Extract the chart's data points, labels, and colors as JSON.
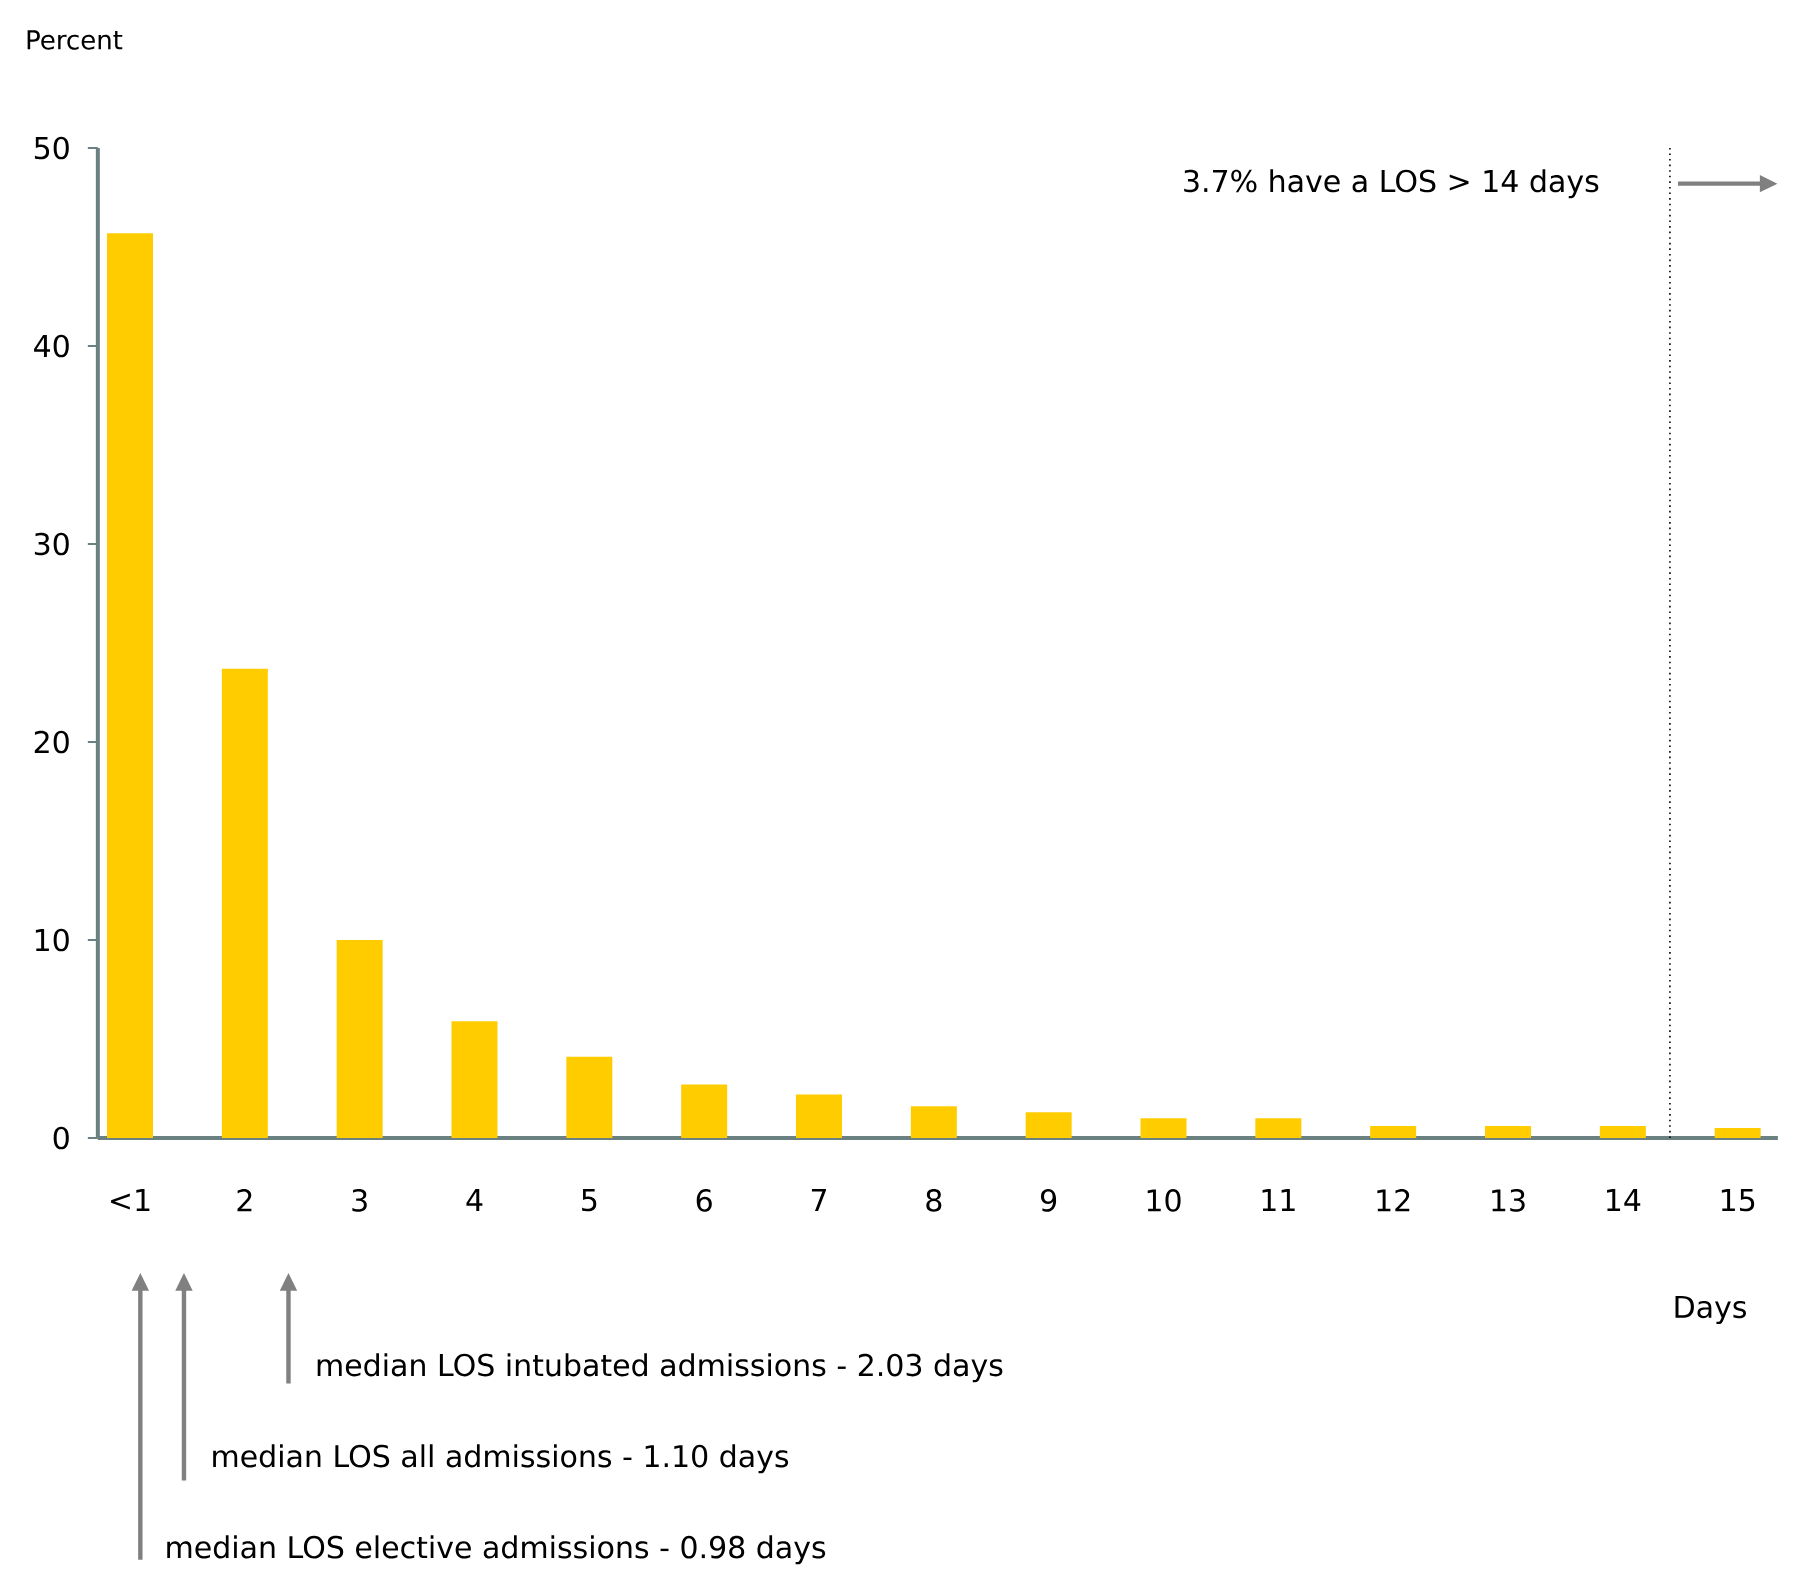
{
  "chart_data": {
    "type": "bar",
    "xlabel": "Days",
    "ylabel": "Percent",
    "categories": [
      "<1",
      "2",
      "3",
      "4",
      "5",
      "6",
      "7",
      "8",
      "9",
      "10",
      "11",
      "12",
      "13",
      "14",
      "15"
    ],
    "values": [
      45.7,
      23.7,
      10.0,
      5.9,
      4.1,
      2.7,
      2.2,
      1.6,
      1.3,
      1.0,
      1.0,
      0.6,
      0.6,
      0.6,
      0.5
    ],
    "color": "#ffcc00",
    "ylim": [
      0,
      50
    ],
    "yticks": [
      0,
      10,
      20,
      30,
      40,
      50
    ],
    "grid": false,
    "annotations": [
      "3.7% have a LOS > 14 days",
      "median LOS  intubated admissions - 2.03 days",
      "median LOS  all admissions - 1.10 days",
      "median LOS  elective admissions - 0.98 days"
    ]
  }
}
